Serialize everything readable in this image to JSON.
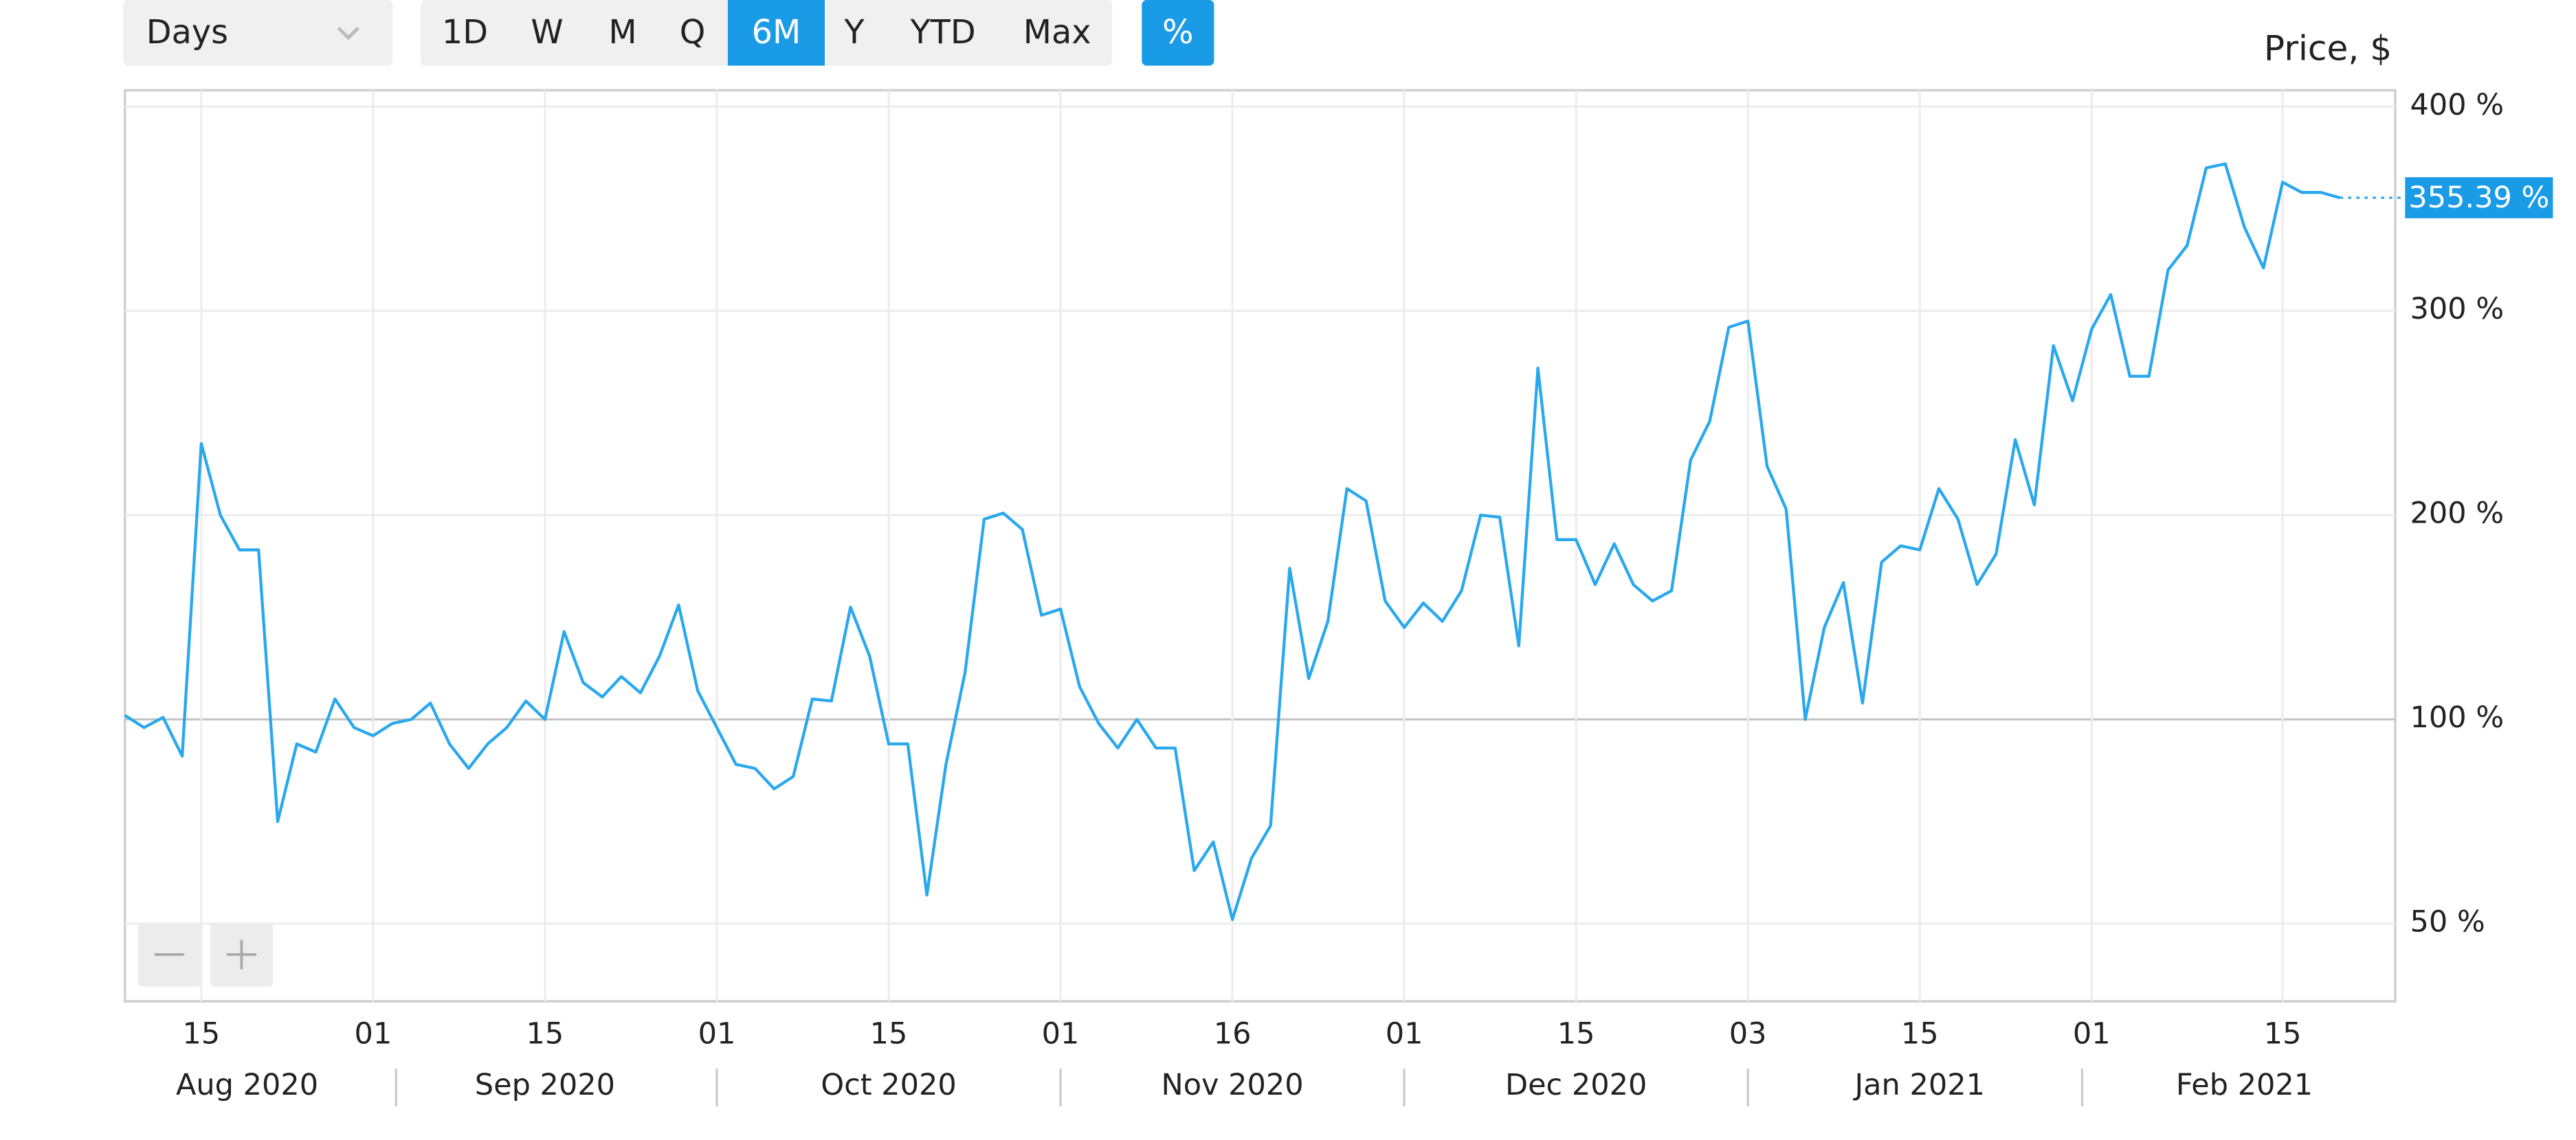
{
  "toolbar": {
    "interval_select": "Days",
    "ranges": [
      "1D",
      "W",
      "M",
      "Q",
      "6M",
      "Y",
      "YTD",
      "Max"
    ],
    "active_range": "6M",
    "percent_toggle": "%"
  },
  "chart_data": {
    "type": "line",
    "y_axis_label": "Price, $",
    "color": "#29a8ee",
    "grid": true,
    "series": [
      {
        "values": [
          102,
          98,
          101,
          91,
          235,
          200,
          183,
          183,
          75,
          94,
          92,
          110,
          98,
          96,
          99,
          100,
          108,
          94,
          88,
          94,
          98,
          109,
          100,
          143,
          118,
          111,
          121,
          113,
          131,
          156,
          114,
          98,
          89,
          88,
          83,
          86,
          110,
          109,
          155,
          131,
          94,
          94,
          57,
          89,
          123,
          198,
          201,
          193,
          151,
          154,
          116,
          99,
          93,
          100,
          93,
          93,
          63,
          70,
          51,
          66,
          74,
          174,
          120,
          148,
          213,
          207,
          158,
          145,
          157,
          148,
          163,
          200,
          199,
          136,
          272,
          188,
          188,
          166,
          186,
          166,
          158,
          163,
          227,
          246,
          292,
          295,
          224,
          203,
          100,
          145,
          167,
          108,
          177,
          185,
          183,
          213,
          198,
          166,
          181,
          237,
          205,
          283,
          256,
          291,
          308,
          268,
          268,
          320,
          332,
          370,
          372,
          341,
          321,
          363,
          358,
          358,
          355.39
        ],
        "last_value": 355.39,
        "last_value_label": "355.39 %"
      }
    ],
    "xlim": [
      0,
      118.9
    ],
    "xticks": [
      {
        "value": 4,
        "label": "15"
      },
      {
        "value": 13,
        "label": "01"
      },
      {
        "value": 22,
        "label": "15"
      },
      {
        "value": 31,
        "label": "01"
      },
      {
        "value": 40,
        "label": "15"
      },
      {
        "value": 49,
        "label": "01"
      },
      {
        "value": 58,
        "label": "16"
      },
      {
        "value": 67,
        "label": "01"
      },
      {
        "value": 76,
        "label": "15"
      },
      {
        "value": 85,
        "label": "03"
      },
      {
        "value": 94,
        "label": "15"
      },
      {
        "value": 103,
        "label": "01"
      },
      {
        "value": 113,
        "label": "15"
      }
    ],
    "month_ticks": [
      {
        "value": 6.4,
        "label": "Aug 2020"
      },
      {
        "value": 22,
        "label": "Sep 2020"
      },
      {
        "value": 40,
        "label": "Oct 2020"
      },
      {
        "value": 58,
        "label": "Nov 2020"
      },
      {
        "value": 76,
        "label": "Dec 2020"
      },
      {
        "value": 94,
        "label": "Jan 2021"
      },
      {
        "value": 111,
        "label": "Feb 2021"
      }
    ],
    "ylim": [
      31,
      408
    ],
    "yticks": [
      {
        "value": 50,
        "label": "50 %"
      },
      {
        "value": 100,
        "label": "100 %"
      },
      {
        "value": 200,
        "label": "200 %"
      },
      {
        "value": 300,
        "label": "300 %"
      },
      {
        "value": 400,
        "label": "400 %"
      }
    ],
    "baseline": 100
  }
}
